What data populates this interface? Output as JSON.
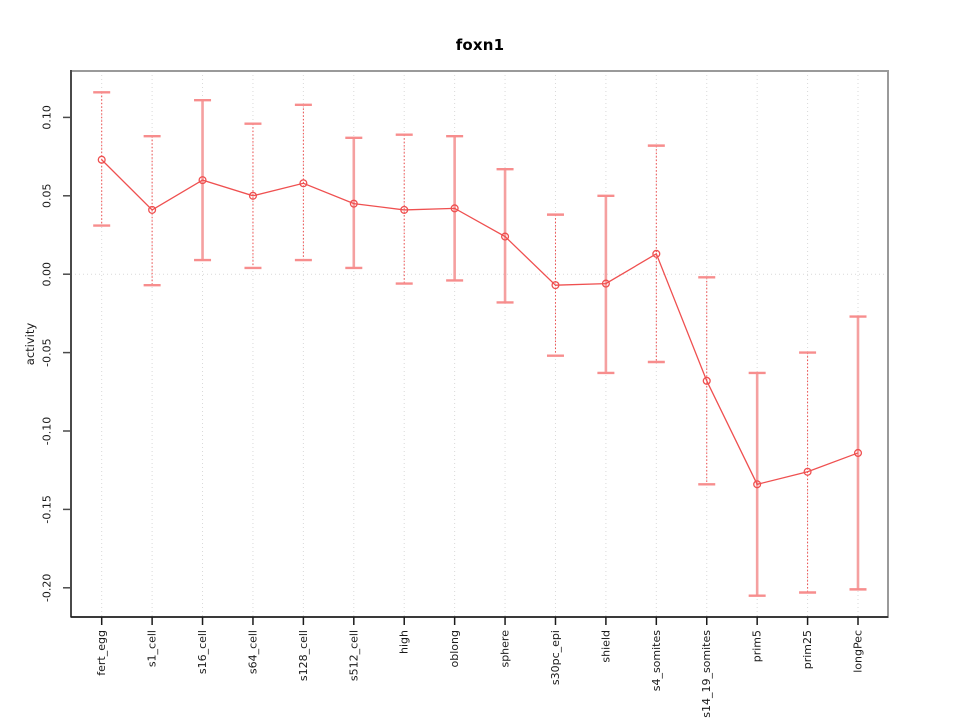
{
  "chart_data": {
    "type": "line",
    "title": "foxn1",
    "xlabel": "",
    "ylabel": "activity",
    "legend_position": "none",
    "marker": "open-circle",
    "grid": {
      "vertical_dotted_per_category": true,
      "horizontal_zero_line_dotted": true
    },
    "ylim": [
      -0.22,
      0.13
    ],
    "yticks": {
      "labels": [
        "0.10",
        "0.05",
        "0.00",
        "-0.05",
        "-0.10",
        "-0.15",
        "-0.20"
      ],
      "values": [
        0.1,
        0.05,
        0.0,
        -0.05,
        -0.1,
        -0.15,
        -0.2
      ]
    },
    "categories": [
      "fert_egg",
      "s1_cell",
      "s16_cell",
      "s64_cell",
      "s128_cell",
      "s512_cell",
      "high",
      "oblong",
      "sphere",
      "s30pc_epi",
      "shield",
      "s4_somites",
      "s14_19_somites",
      "prim5",
      "prim25",
      "longPec"
    ],
    "series": [
      {
        "name": "foxn1 activity",
        "means": [
          0.073,
          0.041,
          0.06,
          0.05,
          0.058,
          0.045,
          0.041,
          0.042,
          0.024,
          -0.007,
          -0.006,
          0.013,
          -0.068,
          -0.134,
          -0.126,
          -0.114
        ],
        "error_upper": [
          0.116,
          0.088,
          0.111,
          0.096,
          0.108,
          0.087,
          0.089,
          0.088,
          0.067,
          0.038,
          0.05,
          0.082,
          -0.002,
          -0.063,
          -0.05,
          -0.027
        ],
        "error_lower": [
          0.031,
          -0.007,
          0.009,
          0.004,
          0.009,
          0.004,
          -0.006,
          -0.004,
          -0.018,
          -0.052,
          -0.063,
          -0.056,
          -0.134,
          -0.205,
          -0.203,
          -0.201
        ],
        "errorbar_line_styles": [
          "dotted",
          "dotted",
          "solid",
          "dotted",
          "dotted",
          "solid",
          "dotted",
          "solid",
          "solid",
          "dotted",
          "solid",
          "dotted",
          "dotted",
          "solid",
          "dotted",
          "solid"
        ]
      }
    ],
    "colors": {
      "series": "#ef5050",
      "errorbar_solid_stem": "#f5a0a0",
      "errorbar_dotted_stem": "#ee4b4b",
      "errorbar_cap": "#f78d8d",
      "grid": "#d9d9d9",
      "axis": "#4a4a4a",
      "x_axis": "#1a1a1a",
      "box": "#9a9a9a",
      "text": "#1a1a1a"
    }
  }
}
